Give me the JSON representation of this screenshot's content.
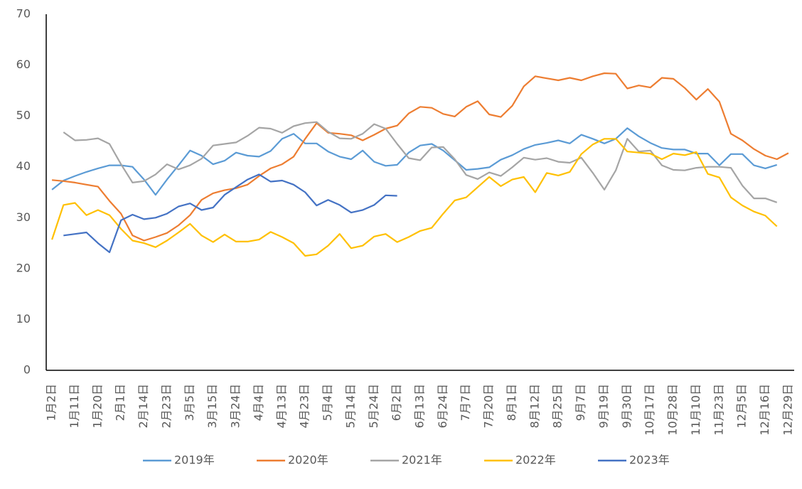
{
  "chart_data": {
    "type": "line",
    "categories": [
      "1月2日",
      null,
      "1月11日",
      null,
      "1月20日",
      null,
      "2月1日",
      null,
      "2月14日",
      null,
      "2月23日",
      null,
      "3月5日",
      null,
      "3月15日",
      null,
      "3月24日",
      null,
      "4月4日",
      null,
      "4月13日",
      null,
      "4月23日",
      null,
      "5月4日",
      null,
      "5月14日",
      null,
      "5月24日",
      null,
      "6月2日",
      null,
      "6月13日",
      null,
      "6月24日",
      null,
      "7月7日",
      null,
      "7月20日",
      null,
      "8月1日",
      null,
      "8月12日",
      null,
      "8月25日",
      null,
      "9月7日",
      null,
      "9月19日",
      null,
      "9月30日",
      null,
      "10月17日",
      null,
      "10月28日",
      null,
      "11月10日",
      null,
      "11月23日",
      null,
      "12月5日",
      null,
      "12月16日",
      null,
      "12月29日"
    ],
    "series": [
      {
        "name": "2019年",
        "color": "#5B9BD5",
        "values": [
          35.5,
          37.3,
          38.2,
          39.0,
          39.7,
          40.3,
          40.3,
          40.0,
          37.5,
          34.5,
          37.5,
          40.3,
          43.2,
          42.2,
          40.5,
          41.2,
          42.8,
          42.2,
          42.0,
          43.1,
          45.5,
          46.5,
          44.6,
          44.6,
          43.0,
          42.0,
          41.5,
          43.2,
          41.0,
          40.2,
          40.4,
          42.8,
          44.2,
          44.5,
          43.2,
          41.3,
          39.4,
          39.6,
          39.9,
          41.4,
          42.3,
          43.5,
          44.3,
          44.7,
          45.2,
          44.6,
          46.3,
          45.5,
          44.6,
          45.5,
          47.6,
          46.0,
          44.7,
          43.7,
          43.4,
          43.4,
          42.6,
          42.6,
          40.3,
          42.5,
          42.5,
          40.3,
          39.7,
          40.4,
          null
        ]
      },
      {
        "name": "2020年",
        "color": "#ED7D31",
        "values": [
          37.4,
          37.2,
          36.9,
          36.5,
          36.1,
          33.3,
          30.8,
          26.5,
          25.5,
          26.2,
          27.0,
          28.5,
          30.5,
          33.5,
          34.8,
          35.4,
          35.8,
          36.5,
          38.2,
          39.7,
          40.5,
          42.0,
          45.5,
          48.6,
          46.7,
          46.5,
          46.2,
          45.2,
          46.3,
          47.5,
          48.1,
          50.5,
          51.8,
          51.6,
          50.4,
          49.9,
          51.8,
          52.9,
          50.3,
          49.8,
          52.0,
          55.8,
          57.8,
          57.4,
          57.0,
          57.5,
          57.0,
          57.8,
          58.4,
          58.3,
          55.4,
          56.0,
          55.6,
          57.5,
          57.3,
          55.5,
          53.2,
          55.3,
          52.8,
          46.5,
          45.2,
          43.5,
          42.2,
          41.5,
          42.7
        ]
      },
      {
        "name": "2021年",
        "color": "#A5A5A5",
        "values": [
          null,
          46.8,
          45.2,
          45.3,
          45.6,
          44.5,
          40.5,
          36.9,
          37.2,
          38.5,
          40.5,
          39.5,
          40.3,
          41.6,
          44.2,
          44.5,
          44.8,
          46.1,
          47.7,
          47.5,
          46.7,
          48.0,
          48.6,
          48.8,
          46.9,
          45.6,
          45.5,
          46.5,
          48.4,
          47.5,
          44.5,
          41.7,
          41.3,
          43.8,
          43.9,
          41.5,
          38.4,
          37.6,
          38.9,
          38.2,
          39.9,
          41.8,
          41.4,
          41.7,
          41.0,
          40.8,
          41.8,
          38.8,
          35.5,
          39.3,
          45.5,
          43.0,
          43.2,
          40.3,
          39.4,
          39.3,
          39.8,
          40.0,
          40.0,
          39.8,
          36.3,
          33.8,
          33.8,
          33.0,
          null
        ]
      },
      {
        "name": "2022年",
        "color": "#FFC000",
        "values": [
          25.7,
          32.5,
          32.9,
          30.5,
          31.5,
          30.5,
          27.8,
          25.5,
          25.0,
          24.2,
          25.5,
          27.1,
          28.8,
          26.5,
          25.2,
          26.7,
          25.3,
          25.3,
          25.7,
          27.2,
          26.2,
          25.0,
          22.5,
          22.8,
          24.5,
          26.8,
          24.0,
          24.5,
          26.3,
          26.8,
          25.2,
          26.2,
          27.4,
          28.0,
          30.8,
          33.4,
          34.0,
          36.0,
          38.0,
          36.2,
          37.5,
          38.0,
          35.0,
          38.8,
          38.3,
          39.0,
          42.5,
          44.4,
          45.5,
          45.5,
          43.0,
          42.8,
          42.6,
          41.5,
          42.6,
          42.3,
          42.9,
          38.6,
          37.9,
          34.0,
          32.4,
          31.2,
          30.4,
          28.3,
          null
        ]
      },
      {
        "name": "2023年",
        "color": "#4472C4",
        "values": [
          null,
          26.5,
          26.8,
          27.1,
          25.0,
          23.2,
          29.5,
          30.6,
          29.7,
          30.0,
          30.8,
          32.2,
          32.8,
          31.5,
          32.0,
          34.5,
          36.0,
          37.5,
          38.5,
          37.1,
          37.3,
          36.5,
          35.0,
          32.4,
          33.5,
          32.5,
          31.0,
          31.5,
          32.5,
          34.4,
          34.3,
          null,
          null,
          null,
          null,
          null,
          null,
          null,
          null,
          null,
          null,
          null,
          null,
          null,
          null,
          null,
          null,
          null,
          null,
          null,
          null,
          null,
          null,
          null,
          null,
          null,
          null,
          null,
          null,
          null,
          null,
          null,
          null,
          null,
          null
        ]
      }
    ],
    "ylim": [
      0,
      70
    ],
    "yticks": [
      0,
      10,
      20,
      30,
      40,
      50,
      60,
      70
    ],
    "legend": "bottom"
  }
}
